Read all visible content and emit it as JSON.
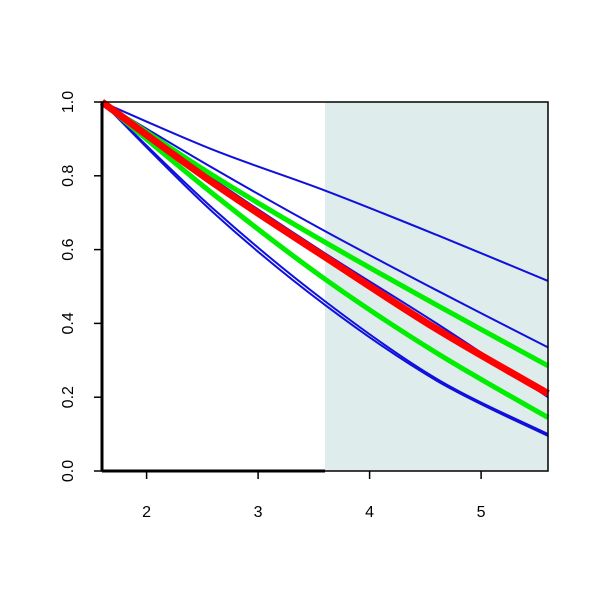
{
  "chart_data": {
    "type": "line",
    "title": "",
    "xlabel": "",
    "ylabel": "",
    "xlim": [
      1.6,
      5.6
    ],
    "ylim": [
      0,
      1
    ],
    "x_ticks": [
      "2",
      "3",
      "4",
      "5"
    ],
    "y_ticks": [
      "0.0",
      "0.2",
      "0.4",
      "0.6",
      "0.8",
      "1.0"
    ],
    "grid": false,
    "shaded_region": {
      "x_from": 3.6,
      "x_to": 5.6,
      "color": "#dfecec"
    },
    "colors": {
      "blue": "#1010dd",
      "green": "#00ee00",
      "red": "#ff0000",
      "axis": "#000000"
    },
    "series": [
      {
        "color": "#1010dd",
        "width": 2,
        "x": [
          1.6,
          2.6,
          3.6,
          4.6,
          5.6
        ],
        "y": [
          1.0,
          0.87,
          0.76,
          0.64,
          0.515
        ]
      },
      {
        "color": "#1010dd",
        "width": 2,
        "x": [
          1.6,
          2.6,
          3.6,
          4.6,
          5.6
        ],
        "y": [
          1.0,
          0.82,
          0.65,
          0.49,
          0.335
        ]
      },
      {
        "color": "#1010dd",
        "width": 2,
        "x": [
          1.6,
          2.6,
          3.6,
          4.6,
          5.6
        ],
        "y": [
          1.0,
          0.79,
          0.59,
          0.4,
          0.2
        ]
      },
      {
        "color": "#1010dd",
        "width": 2,
        "x": [
          1.6,
          2.6,
          3.6,
          4.6,
          5.6
        ],
        "y": [
          1.0,
          0.71,
          0.46,
          0.25,
          0.1
        ]
      },
      {
        "color": "#1010dd",
        "width": 2,
        "x": [
          1.6,
          2.6,
          3.6,
          4.6,
          5.6
        ],
        "y": [
          1.0,
          0.7,
          0.45,
          0.245,
          0.095
        ]
      },
      {
        "color": "#00ee00",
        "width": 5,
        "x": [
          1.6,
          2.6,
          3.6,
          4.6,
          5.6
        ],
        "y": [
          1.0,
          0.8,
          0.62,
          0.45,
          0.285
        ]
      },
      {
        "color": "#00ee00",
        "width": 5,
        "x": [
          1.6,
          2.6,
          3.6,
          4.6,
          5.6
        ],
        "y": [
          1.0,
          0.75,
          0.52,
          0.32,
          0.145
        ]
      },
      {
        "color": "#ff0000",
        "width": 7,
        "x": [
          1.6,
          2.6,
          3.6,
          4.6,
          5.6
        ],
        "y": [
          1.0,
          0.78,
          0.58,
          0.385,
          0.21
        ]
      }
    ]
  }
}
